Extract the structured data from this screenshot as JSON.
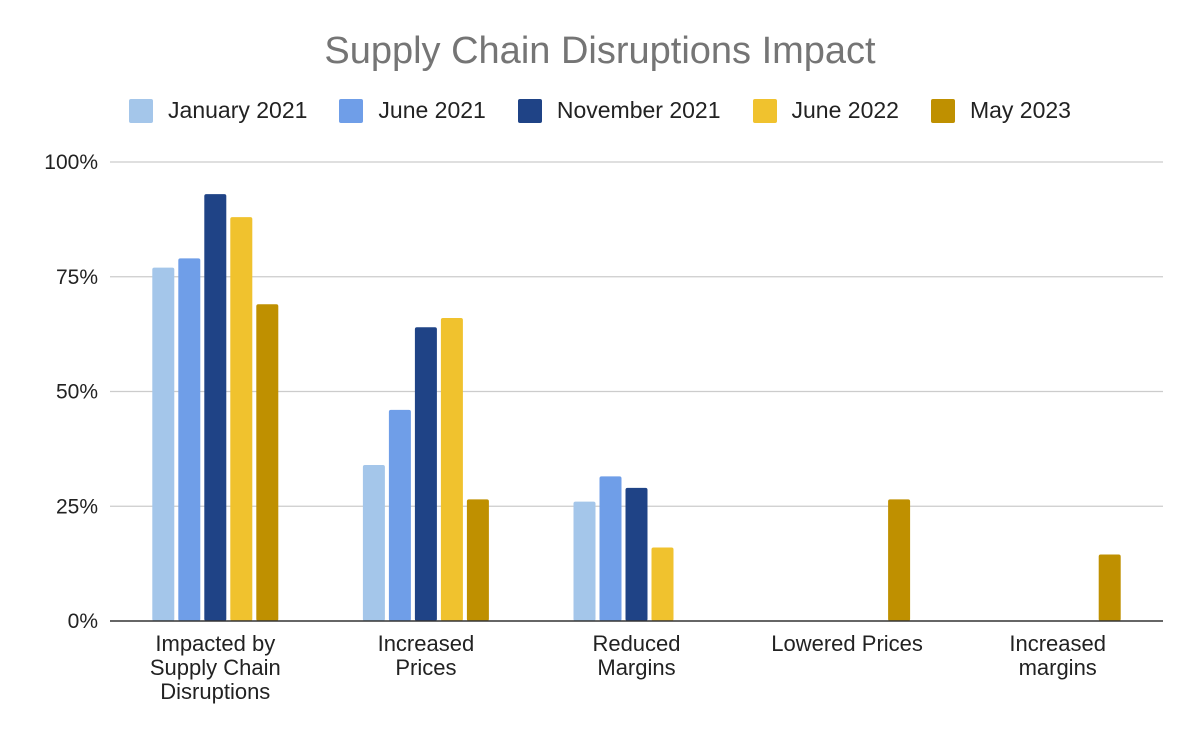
{
  "chart_data": {
    "type": "bar",
    "title": "Supply Chain Disruptions Impact",
    "xlabel": "",
    "ylabel": "",
    "ylim": [
      0,
      100
    ],
    "yticks": [
      "0%",
      "25%",
      "50%",
      "75%",
      "100%"
    ],
    "ytick_values": [
      0,
      25,
      50,
      75,
      100
    ],
    "grid": true,
    "legend_position": "top",
    "categories": [
      "Impacted by Supply Chain Disruptions",
      "Increased Prices",
      "Reduced Margins",
      "Lowered Prices",
      "Increased margins"
    ],
    "series": [
      {
        "name": "January 2021",
        "color": "#a4c6ea",
        "values": [
          77,
          34,
          26,
          null,
          null
        ]
      },
      {
        "name": "June 2021",
        "color": "#6f9ee8",
        "values": [
          79,
          46,
          31.5,
          null,
          null
        ]
      },
      {
        "name": "November 2021",
        "color": "#1f4386",
        "values": [
          93,
          64,
          29,
          null,
          null
        ]
      },
      {
        "name": "June 2022",
        "color": "#f0c22e",
        "values": [
          88,
          66,
          16,
          null,
          null
        ]
      },
      {
        "name": "May 2023",
        "color": "#bf9000",
        "values": [
          69,
          26.5,
          null,
          26.5,
          14.5
        ]
      }
    ]
  }
}
